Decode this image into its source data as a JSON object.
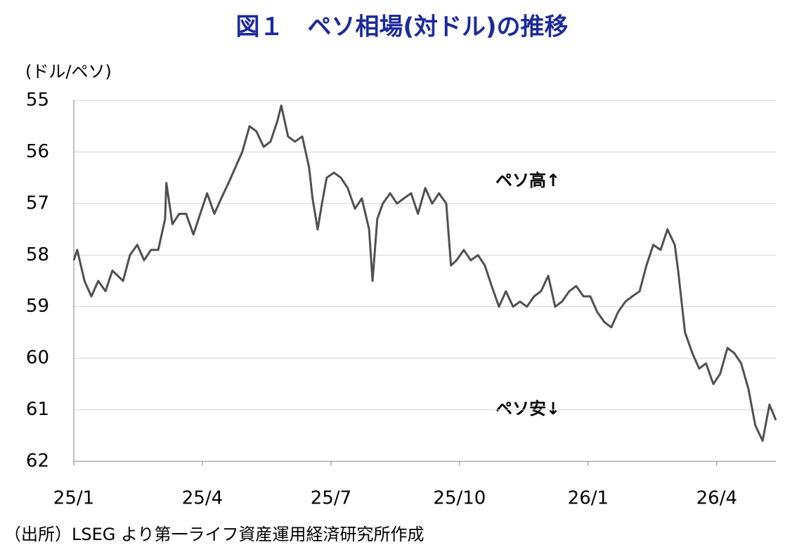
{
  "chart_data": {
    "type": "line",
    "title": "図１　ペソ相場(対ドル)の推移",
    "y_label": "(ドル/ペソ)",
    "source": "（出所）LSEG より第一ライフ資産運用経済研究所作成",
    "annotations": [
      "ペソ高↑",
      "ペソ安↓"
    ],
    "xlim": [
      0,
      16.38
    ],
    "xticks": [
      {
        "value": 0,
        "label": "25/1"
      },
      {
        "value": 3,
        "label": "25/4"
      },
      {
        "value": 6,
        "label": "25/7"
      },
      {
        "value": 9,
        "label": "25/10"
      },
      {
        "value": 12,
        "label": "26/1"
      },
      {
        "value": 15,
        "label": "26/4"
      }
    ],
    "ylim": [
      62,
      55
    ],
    "yticks": [
      55,
      56,
      57,
      58,
      59,
      60,
      61,
      62
    ],
    "grid": true,
    "series": [
      {
        "color": "#505050",
        "x": [
          0,
          0.08,
          0.25,
          0.41,
          0.57,
          0.74,
          0.9,
          1.15,
          1.31,
          1.48,
          1.64,
          1.8,
          1.97,
          2.13,
          2.16,
          2.3,
          2.46,
          2.62,
          2.79,
          2.95,
          3.11,
          3.28,
          3.44,
          3.61,
          3.77,
          3.93,
          4.1,
          4.26,
          4.43,
          4.59,
          4.75,
          4.84,
          5,
          5.16,
          5.33,
          5.49,
          5.57,
          5.69,
          5.79,
          5.9,
          6.07,
          6.23,
          6.39,
          6.56,
          6.72,
          6.89,
          6.97,
          7.08,
          7.21,
          7.38,
          7.54,
          7.7,
          7.87,
          8.03,
          8.2,
          8.36,
          8.52,
          8.69,
          8.8,
          8.93,
          9.1,
          9.26,
          9.43,
          9.59,
          9.75,
          9.92,
          10.08,
          10.25,
          10.41,
          10.57,
          10.74,
          10.9,
          11.07,
          11.23,
          11.39,
          11.56,
          11.72,
          11.89,
          12.05,
          12.21,
          12.38,
          12.54,
          12.7,
          12.87,
          13.03,
          13.2,
          13.36,
          13.52,
          13.69,
          13.85,
          14.02,
          14.1,
          14.26,
          14.43,
          14.59,
          14.75,
          14.92,
          15.08,
          15.25,
          15.41,
          15.57,
          15.74,
          15.9,
          16.07,
          16.23,
          16.38
        ],
        "values": [
          58.1,
          57.9,
          58.5,
          58.8,
          58.5,
          58.7,
          58.3,
          58.5,
          58.0,
          57.8,
          58.1,
          57.9,
          57.9,
          57.3,
          56.6,
          57.4,
          57.2,
          57.2,
          57.6,
          57.2,
          56.8,
          57.2,
          56.9,
          56.6,
          56.3,
          56.0,
          55.5,
          55.6,
          55.9,
          55.8,
          55.4,
          55.1,
          55.7,
          55.8,
          55.7,
          56.3,
          56.9,
          57.5,
          57.0,
          56.5,
          56.4,
          56.5,
          56.7,
          57.1,
          56.9,
          57.5,
          58.5,
          57.3,
          57.0,
          56.8,
          57.0,
          56.9,
          56.8,
          57.2,
          56.7,
          57.0,
          56.8,
          57.0,
          58.2,
          58.1,
          57.9,
          58.1,
          58.0,
          58.2,
          58.6,
          59.0,
          58.7,
          59.0,
          58.9,
          59.0,
          58.8,
          58.7,
          58.4,
          59.0,
          58.9,
          58.7,
          58.6,
          58.8,
          58.8,
          59.1,
          59.3,
          59.4,
          59.1,
          58.9,
          58.8,
          58.7,
          58.2,
          57.8,
          57.9,
          57.5,
          57.8,
          58.3,
          59.5,
          59.9,
          60.2,
          60.1,
          60.5,
          60.3,
          59.8,
          59.9,
          60.1,
          60.6,
          61.3,
          61.6,
          60.9,
          61.2
        ]
      }
    ]
  }
}
